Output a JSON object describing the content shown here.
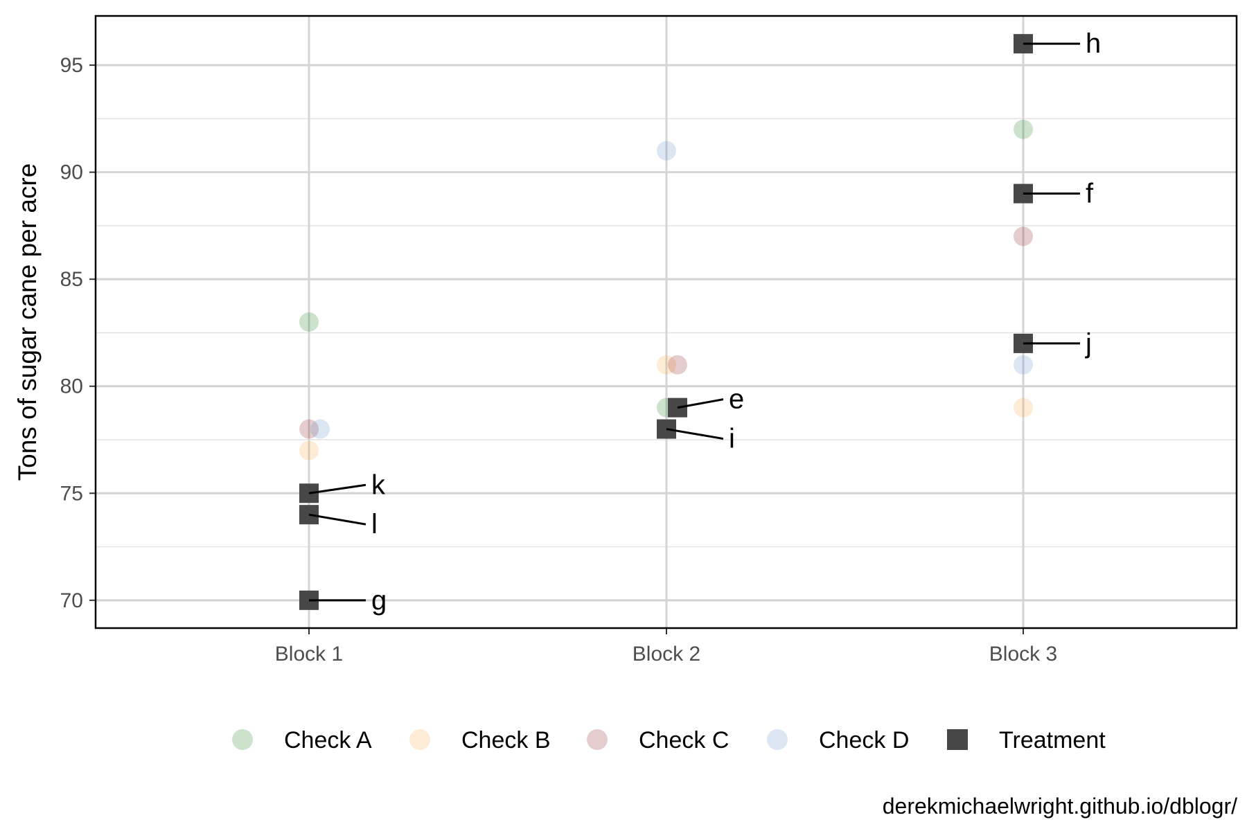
{
  "chart_data": {
    "type": "scatter",
    "ylabel": "Tons of sugar cane per acre",
    "xlabel": "",
    "categories": [
      "Block 1",
      "Block 2",
      "Block 3"
    ],
    "ylim": [
      68.7,
      97.3
    ],
    "yticks": [
      70,
      75,
      80,
      85,
      90,
      95
    ],
    "grid": true,
    "legend_position": "bottom",
    "caption": "derekmichaelwright.github.io/dblogr/",
    "series": [
      {
        "name": "Check A",
        "color": "#1b7a1b",
        "marker": "circle",
        "points": [
          {
            "x": "Block 1",
            "y": 83
          },
          {
            "x": "Block 2",
            "y": 79
          },
          {
            "x": "Block 3",
            "y": 92
          }
        ]
      },
      {
        "name": "Check B",
        "color": "#f5a340",
        "marker": "circle",
        "points": [
          {
            "x": "Block 1",
            "y": 77
          },
          {
            "x": "Block 2",
            "y": 81
          },
          {
            "x": "Block 3",
            "y": 79
          }
        ]
      },
      {
        "name": "Check C",
        "color": "#8b1a1a",
        "marker": "circle",
        "points": [
          {
            "x": "Block 1",
            "y": 78
          },
          {
            "x": "Block 2",
            "y": 81
          },
          {
            "x": "Block 3",
            "y": 87
          }
        ]
      },
      {
        "name": "Check D",
        "color": "#5b8cc4",
        "marker": "circle",
        "points": [
          {
            "x": "Block 1",
            "y": 78
          },
          {
            "x": "Block 2",
            "y": 91
          },
          {
            "x": "Block 3",
            "y": 81
          }
        ]
      },
      {
        "name": "Treatment",
        "color": "#474747",
        "marker": "square",
        "points": [
          {
            "x": "Block 1",
            "y": 75,
            "label": "k"
          },
          {
            "x": "Block 1",
            "y": 74,
            "label": "l"
          },
          {
            "x": "Block 1",
            "y": 70,
            "label": "g"
          },
          {
            "x": "Block 2",
            "y": 79,
            "label": "e"
          },
          {
            "x": "Block 2",
            "y": 78,
            "label": "i"
          },
          {
            "x": "Block 3",
            "y": 96,
            "label": "h"
          },
          {
            "x": "Block 3",
            "y": 89,
            "label": "f"
          },
          {
            "x": "Block 3",
            "y": 82,
            "label": "j"
          }
        ]
      }
    ]
  }
}
